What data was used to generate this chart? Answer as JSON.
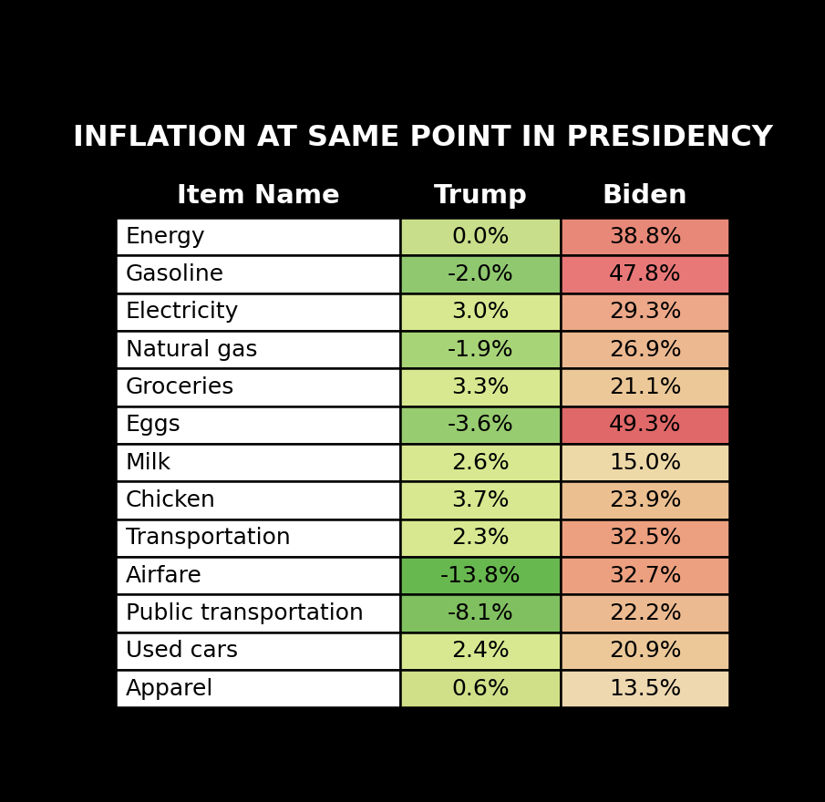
{
  "title": "INFLATION AT SAME POINT IN PRESIDENCY",
  "col_headers": [
    "Item Name",
    "Trump",
    "Biden"
  ],
  "items": [
    {
      "name": "Energy",
      "trump": "0.0%",
      "biden": "38.8%",
      "trump_color": "#c8de8a",
      "biden_color": "#e88878"
    },
    {
      "name": "Gasoline",
      "trump": "-2.0%",
      "biden": "47.8%",
      "trump_color": "#90c870",
      "biden_color": "#e87878"
    },
    {
      "name": "Electricity",
      "trump": "3.0%",
      "biden": "29.3%",
      "trump_color": "#d8e890",
      "biden_color": "#eca888"
    },
    {
      "name": "Natural gas",
      "trump": "-1.9%",
      "biden": "26.9%",
      "trump_color": "#a8d478",
      "biden_color": "#ecb890"
    },
    {
      "name": "Groceries",
      "trump": "3.3%",
      "biden": "21.1%",
      "trump_color": "#d8e890",
      "biden_color": "#ecc898"
    },
    {
      "name": "Eggs",
      "trump": "-3.6%",
      "biden": "49.3%",
      "trump_color": "#98cc70",
      "biden_color": "#e06868"
    },
    {
      "name": "Milk",
      "trump": "2.6%",
      "biden": "15.0%",
      "trump_color": "#d8e890",
      "biden_color": "#edd8a8"
    },
    {
      "name": "Chicken",
      "trump": "3.7%",
      "biden": "23.9%",
      "trump_color": "#d8e890",
      "biden_color": "#ecbf90"
    },
    {
      "name": "Transportation",
      "trump": "2.3%",
      "biden": "32.5%",
      "trump_color": "#d8e890",
      "biden_color": "#eca080"
    },
    {
      "name": "Airfare",
      "trump": "-13.8%",
      "biden": "32.7%",
      "trump_color": "#68b850",
      "biden_color": "#eca080"
    },
    {
      "name": "Public transportation",
      "trump": "-8.1%",
      "biden": "22.2%",
      "trump_color": "#80c060",
      "biden_color": "#ecba90"
    },
    {
      "name": "Used cars",
      "trump": "2.4%",
      "biden": "20.9%",
      "trump_color": "#d8e890",
      "biden_color": "#ecc898"
    },
    {
      "name": "Apparel",
      "trump": "0.6%",
      "biden": "13.5%",
      "trump_color": "#d0e088",
      "biden_color": "#edd8b0"
    }
  ],
  "background_color": "#000000",
  "table_bg": "#ffffff",
  "header_bg": "#000000",
  "header_text_color": "#ffffff",
  "item_text_color": "#000000",
  "value_text_color": "#000000",
  "border_color": "#000000",
  "title_fontsize": 23,
  "header_fontsize": 21,
  "cell_fontsize": 18,
  "fig_width": 9.05,
  "fig_height": 8.8,
  "dpi": 100
}
